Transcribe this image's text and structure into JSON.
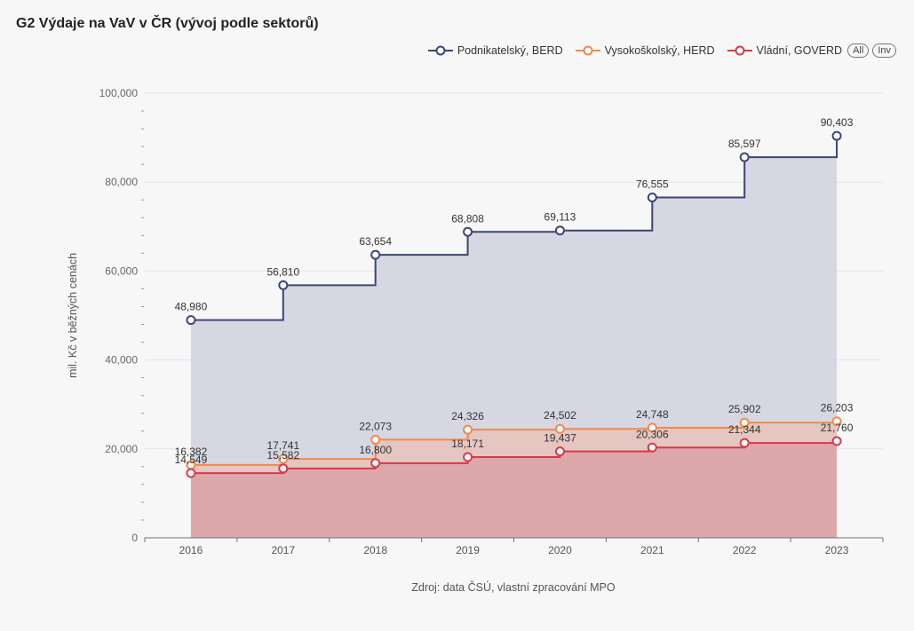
{
  "title": "G2 Výdaje na VaV v ČR (vývoj podle sektorů)",
  "source": "Zdroj: data ČSÚ, vlastní zpracování MPO",
  "legend_buttons": {
    "all": "All",
    "inv": "Inv"
  },
  "chart_data": {
    "type": "line",
    "step": "end",
    "area": true,
    "categories": [
      "2016",
      "2017",
      "2018",
      "2019",
      "2020",
      "2021",
      "2022",
      "2023"
    ],
    "ylabel": "mil. Kč v běžných cenách",
    "xlabel": "",
    "ylim": [
      0,
      100000
    ],
    "yticks": [
      "0",
      "20,000",
      "40,000",
      "60,000",
      "80,000",
      "100,000"
    ],
    "grid": true,
    "legend_position": "top-right",
    "series": [
      {
        "name": "Podnikatelský, BERD",
        "color": "#3d4577",
        "fill": "#d4d5e0",
        "values": [
          48980,
          56810,
          63654,
          68808,
          69113,
          76555,
          85597,
          90403
        ],
        "labels": [
          "48,980",
          "56,810",
          "63,654",
          "68,808",
          "69,113",
          "76,555",
          "85,597",
          "90,403"
        ]
      },
      {
        "name": "Vysokoškolský, HERD",
        "color": "#f08a4b",
        "fill": "#e7c5bf",
        "values": [
          16382,
          17741,
          22073,
          24326,
          24502,
          24748,
          25902,
          26203
        ],
        "labels": [
          "16,382",
          "17,741",
          "22,073",
          "24,326",
          "24,502",
          "24,748",
          "25,902",
          "26,203"
        ]
      },
      {
        "name": "Vládní, GOVERD",
        "color": "#d8394a",
        "fill": "#dba7ab",
        "values": [
          14549,
          15582,
          16800,
          18171,
          19437,
          20306,
          21344,
          21760
        ],
        "labels": [
          "14,549",
          "15,582",
          "16,800",
          "18,171",
          "19,437",
          "20,306",
          "21,344",
          "21,760"
        ]
      }
    ]
  }
}
